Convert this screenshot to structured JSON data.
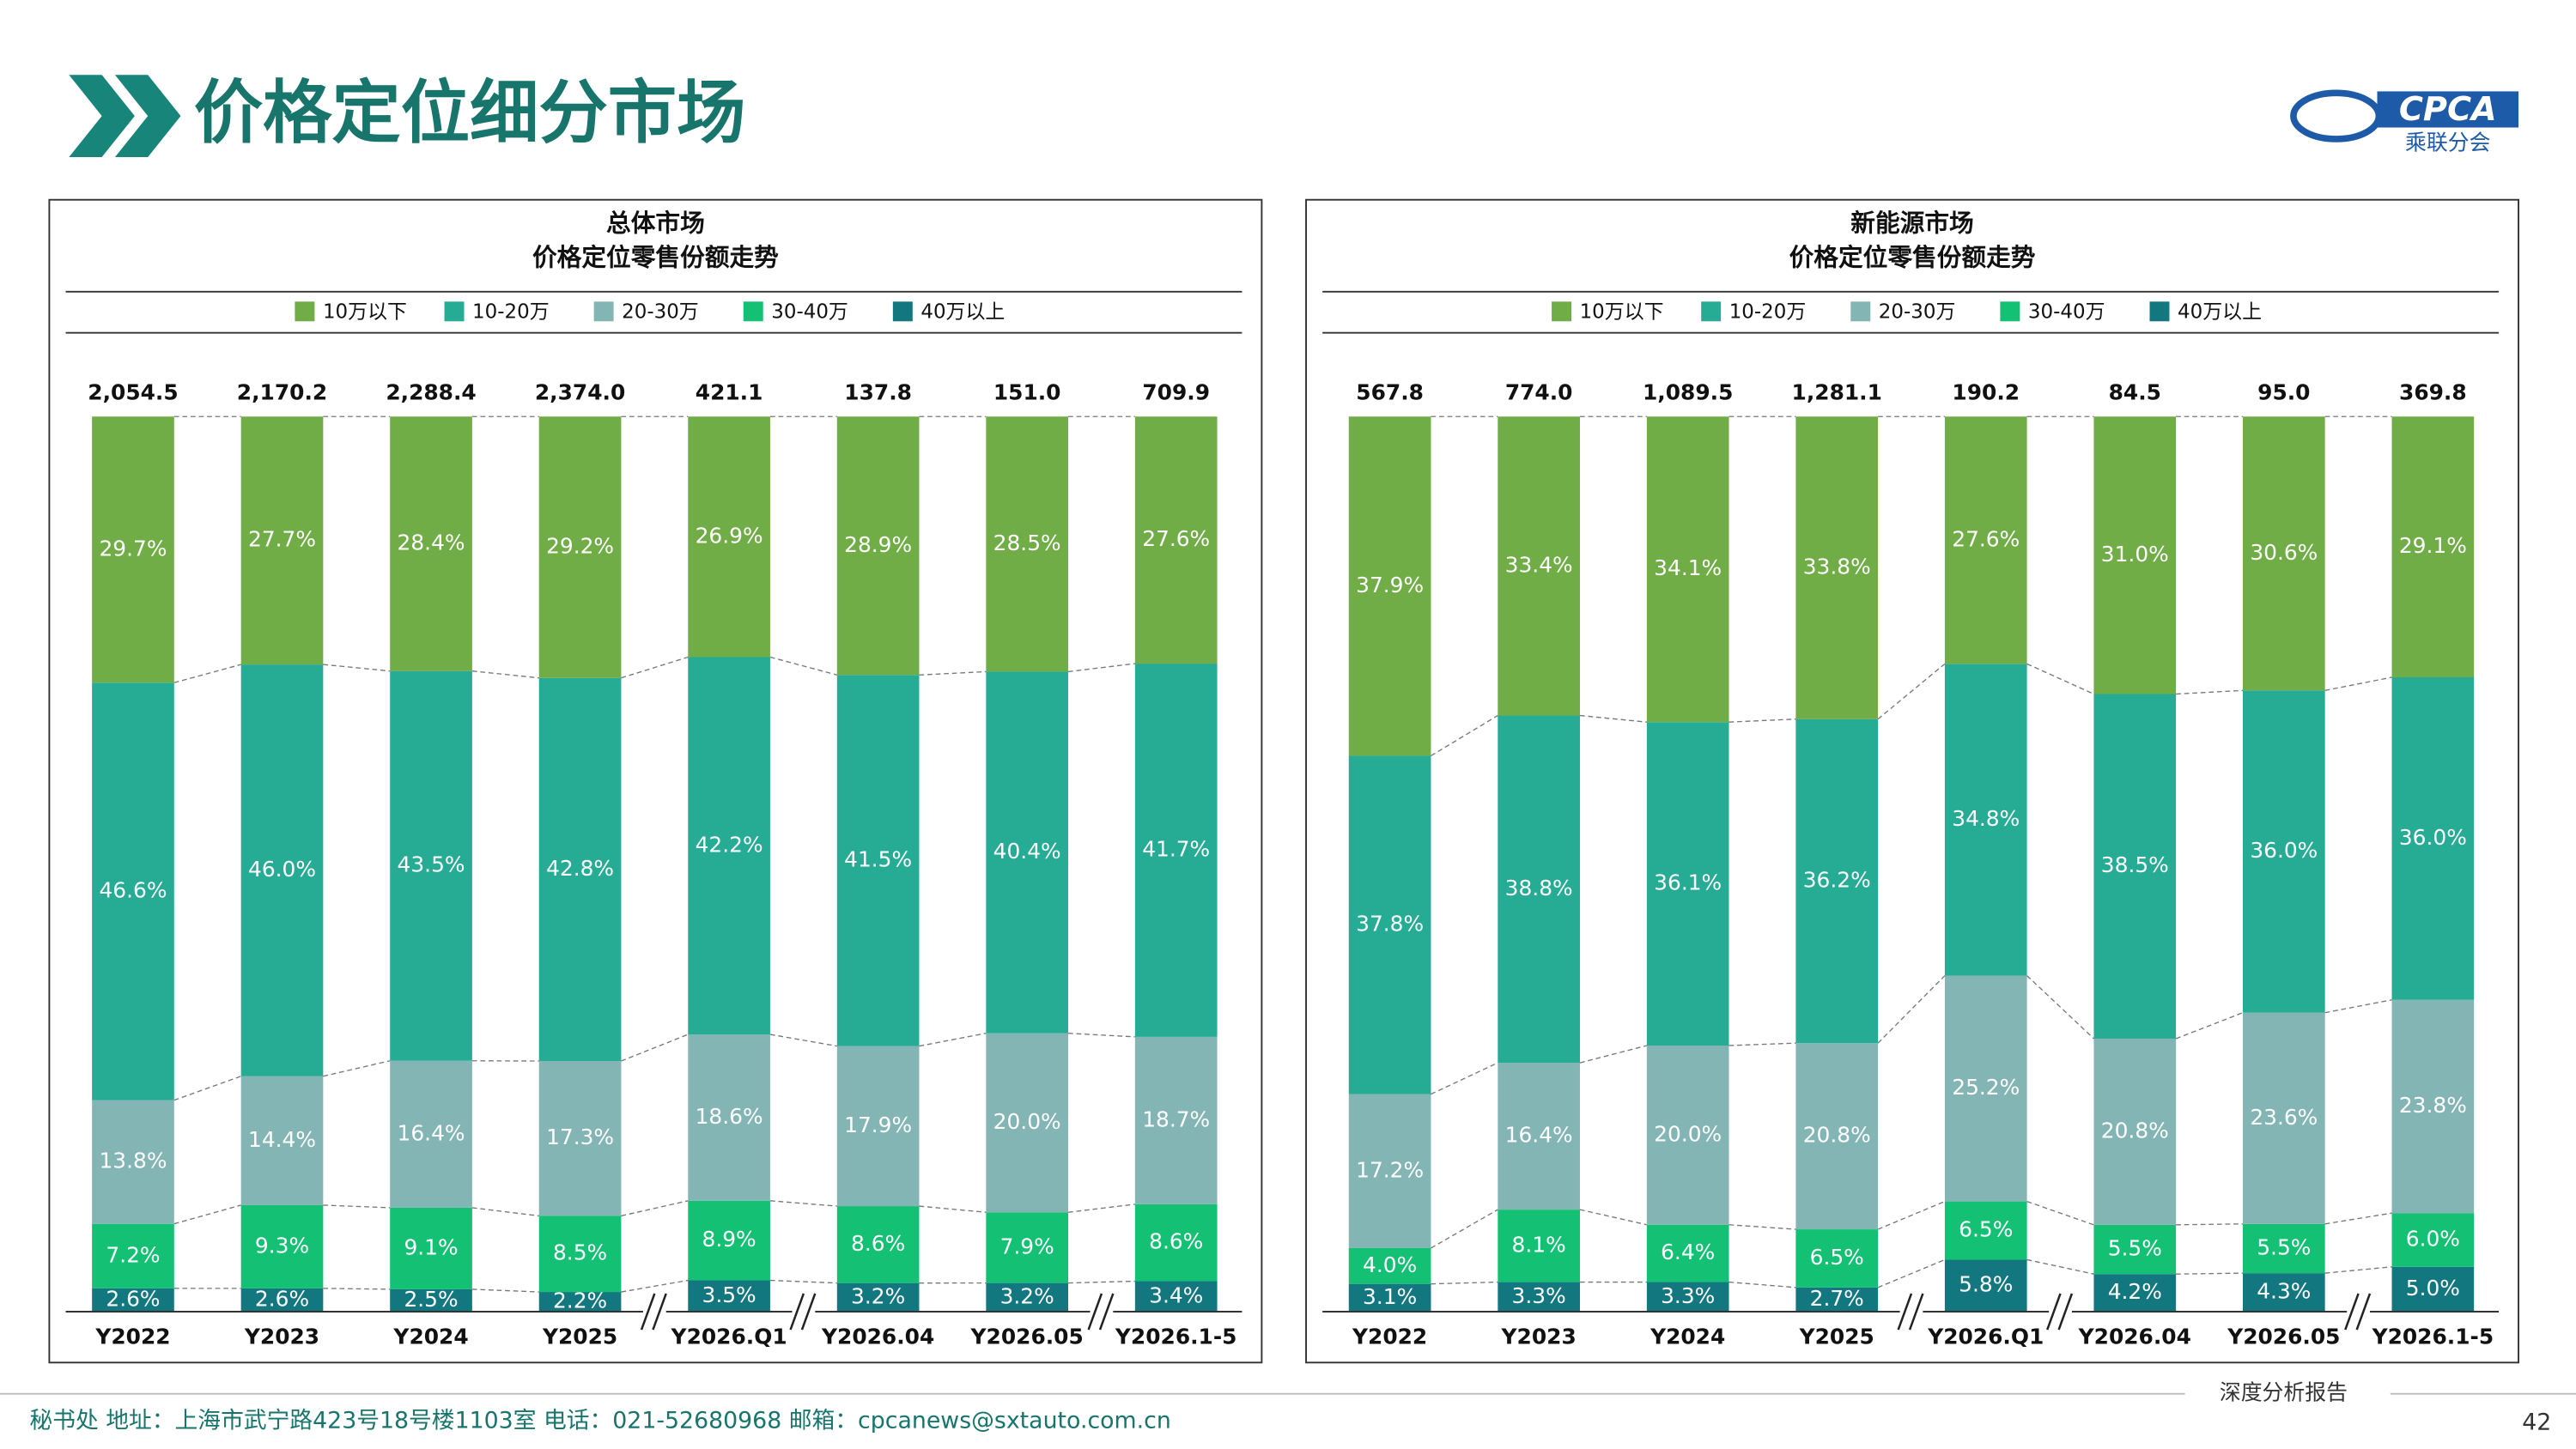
{
  "header": {
    "title": "价格定位细分市场",
    "logo": "CPCA",
    "logo_sub": "乘联分会"
  },
  "chart_data": [
    {
      "type": "stacked_bar",
      "title": "总体市场",
      "subtitle": "价格定位零售份额走势",
      "categories": [
        "Y2022",
        "Y2023",
        "Y2024",
        "Y2025",
        "Y2026.Q1",
        "Y2026.04",
        "Y2026.05",
        "Y2026.1-5"
      ],
      "totals": {
        "values": [
          2054.5,
          2170.2,
          2288.4,
          2374.0,
          421.1,
          137.8,
          151.0,
          709.9
        ],
        "value_labels": [
          "2,054.5",
          "2,170.2",
          "2,288.4",
          "2,374.0",
          "421.1",
          "137.8",
          "151.0",
          "709.9"
        ]
      },
      "series": [
        {
          "name": "10万以下",
          "color": "#70ad47",
          "values": [
            29.7,
            27.7,
            28.4,
            29.2,
            26.9,
            28.9,
            28.5,
            27.6
          ],
          "value_labels": [
            "29.7%",
            "27.7%",
            "28.4%",
            "29.2%",
            "26.9%",
            "28.9%",
            "28.5%",
            "27.6%"
          ]
        },
        {
          "name": "10-20万",
          "color": "#26ab94",
          "values": [
            46.6,
            46.0,
            43.5,
            42.8,
            42.2,
            41.5,
            40.4,
            41.7
          ],
          "value_labels": [
            "46.6%",
            "46.0%",
            "43.5%",
            "42.8%",
            "42.2%",
            "41.5%",
            "40.4%",
            "41.7%"
          ]
        },
        {
          "name": "20-30万",
          "color": "#84b5b5",
          "values": [
            13.8,
            14.4,
            16.4,
            17.3,
            18.6,
            17.9,
            20.0,
            18.7
          ],
          "value_labels": [
            "13.8%",
            "14.4%",
            "16.4%",
            "17.3%",
            "18.6%",
            "17.9%",
            "20.0%",
            "18.7%"
          ]
        },
        {
          "name": "30-40万",
          "color": "#14c074",
          "values": [
            7.2,
            9.3,
            9.1,
            8.5,
            8.9,
            8.6,
            7.9,
            8.6
          ],
          "value_labels": [
            "7.2%",
            "9.3%",
            "9.1%",
            "8.5%",
            "8.9%",
            "8.6%",
            "7.9%",
            "8.6%"
          ]
        },
        {
          "name": "40万以上",
          "color": "#13777f",
          "values": [
            2.6,
            2.6,
            2.5,
            2.2,
            3.5,
            3.2,
            3.2,
            3.4
          ],
          "value_labels": [
            "2.6%",
            "2.6%",
            "2.5%",
            "2.2%",
            "3.5%",
            "3.2%",
            "3.2%",
            "3.4%"
          ]
        }
      ]
    },
    {
      "type": "stacked_bar",
      "title": "新能源市场",
      "subtitle": "价格定位零售份额走势",
      "categories": [
        "Y2022",
        "Y2023",
        "Y2024",
        "Y2025",
        "Y2026.Q1",
        "Y2026.04",
        "Y2026.05",
        "Y2026.1-5"
      ],
      "totals": {
        "values": [
          567.8,
          774.0,
          1089.5,
          1281.1,
          190.2,
          84.5,
          95.0,
          369.8
        ],
        "value_labels": [
          "567.8",
          "774.0",
          "1,089.5",
          "1,281.1",
          "190.2",
          "84.5",
          "95.0",
          "369.8"
        ]
      },
      "series": [
        {
          "name": "10万以下",
          "color": "#70ad47",
          "values": [
            37.9,
            33.4,
            34.1,
            33.8,
            27.6,
            31.0,
            30.6,
            29.1
          ],
          "value_labels": [
            "37.9%",
            "33.4%",
            "34.1%",
            "33.8%",
            "27.6%",
            "31.0%",
            "30.6%",
            "29.1%"
          ]
        },
        {
          "name": "10-20万",
          "color": "#26ab94",
          "values": [
            37.8,
            38.8,
            36.1,
            36.2,
            34.8,
            38.5,
            36.0,
            36.0
          ],
          "value_labels": [
            "37.8%",
            "38.8%",
            "36.1%",
            "36.2%",
            "34.8%",
            "38.5%",
            "36.0%",
            "36.0%"
          ]
        },
        {
          "name": "20-30万",
          "color": "#84b5b5",
          "values": [
            17.2,
            16.4,
            20.0,
            20.8,
            25.2,
            20.8,
            23.6,
            23.8
          ],
          "value_labels": [
            "17.2%",
            "16.4%",
            "20.0%",
            "20.8%",
            "25.2%",
            "20.8%",
            "23.6%",
            "23.8%"
          ]
        },
        {
          "name": "30-40万",
          "color": "#14c074",
          "values": [
            4.0,
            8.1,
            6.4,
            6.5,
            6.5,
            5.5,
            5.5,
            6.0
          ],
          "value_labels": [
            "4.0%",
            "8.1%",
            "6.4%",
            "6.5%",
            "6.5%",
            "5.5%",
            "5.5%",
            "6.0%"
          ]
        },
        {
          "name": "40万以上",
          "color": "#13777f",
          "values": [
            3.1,
            3.3,
            3.3,
            2.7,
            5.8,
            4.2,
            4.3,
            5.0
          ],
          "value_labels": [
            "3.1%",
            "3.3%",
            "3.3%",
            "2.7%",
            "5.8%",
            "4.2%",
            "4.3%",
            "5.0%"
          ]
        }
      ]
    }
  ],
  "footer": {
    "address": "秘书处   地址：上海市武宁路423号18号楼1103室   电话：021-52680968   邮箱：cpcanews@sxtauto.com.cn",
    "report": "深度分析报告",
    "page": "42"
  }
}
